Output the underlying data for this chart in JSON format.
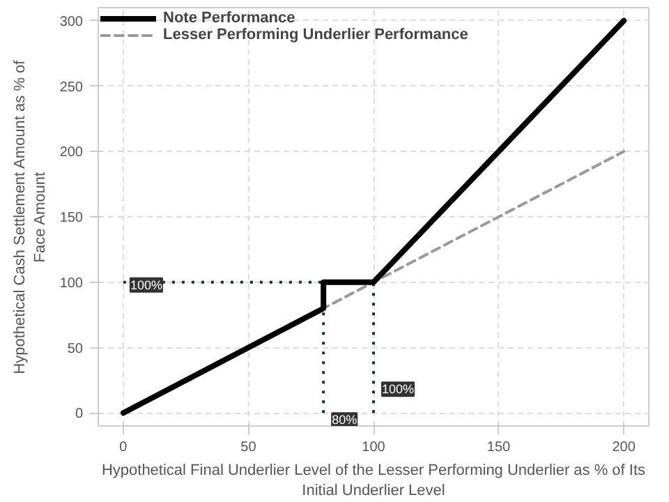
{
  "chart_data": {
    "type": "line",
    "xlabel": "Hypothetical Final Underlier Level of the Lesser Performing Underlier as % of Its\nInitial Underlier Level",
    "ylabel": "Hypothetical Cash Settlement Amount as % of\nFace Amount",
    "series": [
      {
        "name": "Note Performance",
        "color": "#000000",
        "x": [
          0,
          80,
          80,
          100,
          200
        ],
        "values": [
          0,
          80,
          100,
          100,
          300
        ],
        "line_style": "solid"
      },
      {
        "name": "Lesser Performing Underlier Performance",
        "color": "#999999",
        "x": [
          0,
          200
        ],
        "values": [
          0,
          200
        ],
        "line_style": "dashed"
      },
      {
        "color": "#1f2a44",
        "x": [
          0,
          100
        ],
        "values": [
          100,
          100
        ],
        "line_style": "dotted"
      },
      {
        "color": "#1f2a44",
        "x": [
          80,
          80
        ],
        "values": [
          0,
          100
        ],
        "line_style": "dotted"
      },
      {
        "color": "#1f2a44",
        "x": [
          100,
          100
        ],
        "values": [
          0,
          100
        ],
        "line_style": "dotted"
      }
    ],
    "annotations": [
      {
        "text": "100%",
        "x": 0,
        "y": 100
      },
      {
        "text": "80%",
        "x": 80,
        "y": 0
      },
      {
        "text": "100%",
        "x": 100,
        "y": 0
      }
    ],
    "xlim": [
      -10,
      210
    ],
    "ylim": [
      -10,
      310
    ],
    "xticks": [
      0,
      50,
      100,
      150,
      200
    ],
    "yticks": [
      0,
      50,
      100,
      150,
      200,
      250,
      300
    ],
    "grid": true,
    "legend": "top"
  }
}
